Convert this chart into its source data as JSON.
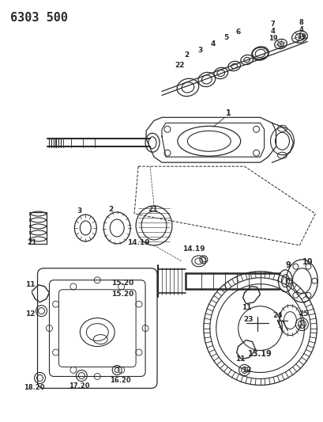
{
  "title": "6303 500",
  "background_color": "#ffffff",
  "fig_width": 4.1,
  "fig_height": 5.33,
  "dpi": 100,
  "line_color": "#2a2a2a",
  "title_fontsize": 11,
  "title_fontweight": "bold"
}
